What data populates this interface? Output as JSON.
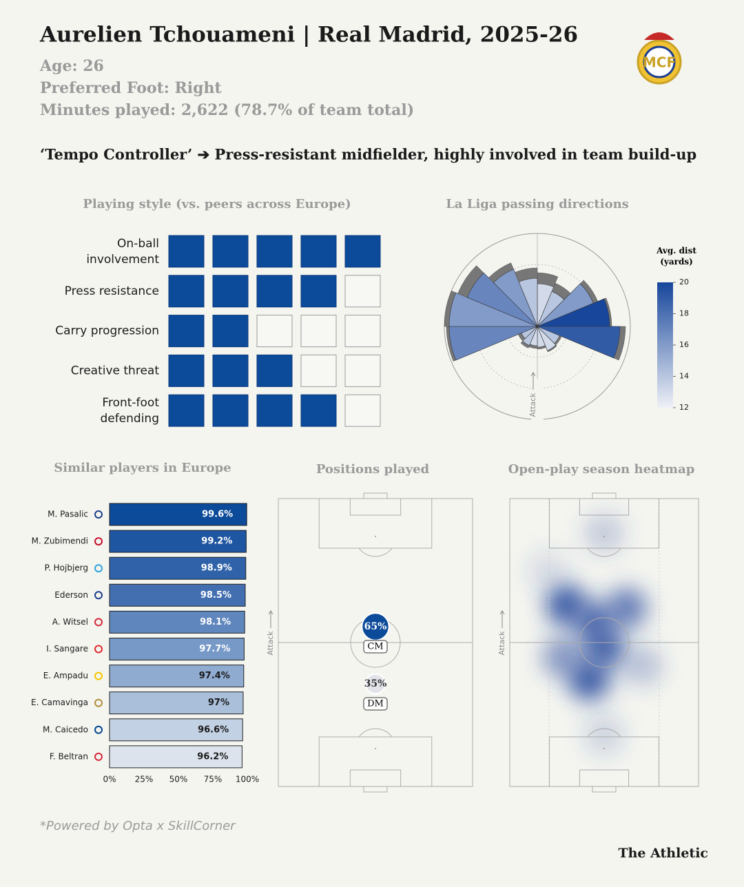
{
  "header": {
    "title": "Aurelien Tchouameni | Real Madrid, 2025-26",
    "age": "Age: 26",
    "foot": "Preferred Foot: Right",
    "minutes": "Minutes played: 2,622 (78.7% of team total)",
    "tagline": "‘Tempo Controller’ ➔ Press-resistant midfielder, highly involved in team build-up",
    "footnote": "*Powered by Opta x SkillCorner",
    "brand": "The Athletic"
  },
  "chart_data": [
    {
      "type": "rating-grid",
      "title": "Playing style (vs. peers across Europe)",
      "categories": [
        "On-ball involvement",
        "Press resistance",
        "Carry progression",
        "Creative threat",
        "Front-foot defending"
      ],
      "values": [
        5,
        4,
        2,
        3,
        4
      ],
      "xlim": [
        0,
        5
      ],
      "color": "#0c4a9a"
    },
    {
      "type": "polar",
      "title": "La Liga passing directions",
      "annotation": "Attack",
      "colorbar_title": "Avg. dist (yards)",
      "values": [
        62,
        55,
        88,
        105,
        120,
        35,
        38,
        30,
        28,
        30,
        25,
        128,
        128,
        110,
        90,
        70
      ],
      "outer_values": [
        78,
        68,
        95,
        108,
        128,
        38,
        40,
        33,
        32,
        34,
        30,
        132,
        135,
        125,
        100,
        85
      ],
      "dist_values": [
        13,
        14,
        16,
        20,
        19,
        14,
        13,
        13,
        13,
        14,
        14,
        17,
        16,
        17,
        16,
        14
      ],
      "rlim": [
        0,
        135
      ],
      "clim": [
        12,
        20
      ],
      "cticks": [
        12,
        14,
        16,
        18,
        20
      ],
      "colormap": [
        "#eef0f6",
        "#17469b"
      ],
      "outer_color": "#777777"
    },
    {
      "type": "hbar",
      "title": "Similar players in Europe",
      "categories": [
        "M. Pasalic",
        "M. Zubimendi",
        "P. Hojbjerg",
        "Ederson",
        "A. Witsel",
        "I. Sangare",
        "E. Ampadu",
        "E. Camavinga",
        "M. Caicedo",
        "F. Beltran"
      ],
      "values": [
        99.6,
        99.2,
        98.9,
        98.5,
        98.1,
        97.7,
        97.4,
        97,
        96.6,
        96.2
      ],
      "value_labels": [
        "99.6%",
        "99.2%",
        "98.9%",
        "98.5%",
        "98.1%",
        "97.7%",
        "97.4%",
        "97%",
        "96.6%",
        "96.2%"
      ],
      "colors": [
        "#0c4a9a",
        "#1f56a2",
        "#2f62a9",
        "#436fb1",
        "#5f86bd",
        "#7799c7",
        "#90abd0",
        "#a9bfda",
        "#c3d1e4",
        "#dce3ed"
      ],
      "xlim": [
        0,
        100
      ],
      "xticks": [
        {
          "value": 0,
          "label": "0%"
        },
        {
          "value": 25,
          "label": "25%"
        },
        {
          "value": 50,
          "label": "50%"
        },
        {
          "value": 75,
          "label": "75%"
        },
        {
          "value": 100,
          "label": "100%"
        }
      ]
    },
    {
      "type": "positions",
      "title": "Positions played",
      "annotation": "Attack",
      "categories": [
        "CM",
        "DM"
      ],
      "values": [
        65,
        35
      ],
      "value_labels": [
        "65%",
        "35%"
      ],
      "colors": [
        "#0c4a9a",
        "#e2e4ea"
      ]
    },
    {
      "type": "heatmap",
      "title": "Open-play season heatmap",
      "annotation": "Attack",
      "x": [
        30,
        62,
        45,
        50,
        42,
        28,
        50,
        50,
        70,
        20
      ],
      "y": [
        63,
        62,
        57,
        48,
        37,
        45,
        88,
        18,
        42,
        75
      ],
      "values": [
        0.9,
        0.7,
        0.8,
        0.85,
        0.9,
        0.55,
        0.25,
        0.2,
        0.3,
        0.15
      ],
      "xlim": [
        0,
        100
      ],
      "ylim": [
        0,
        100
      ],
      "color": "#2f4fa0"
    }
  ]
}
